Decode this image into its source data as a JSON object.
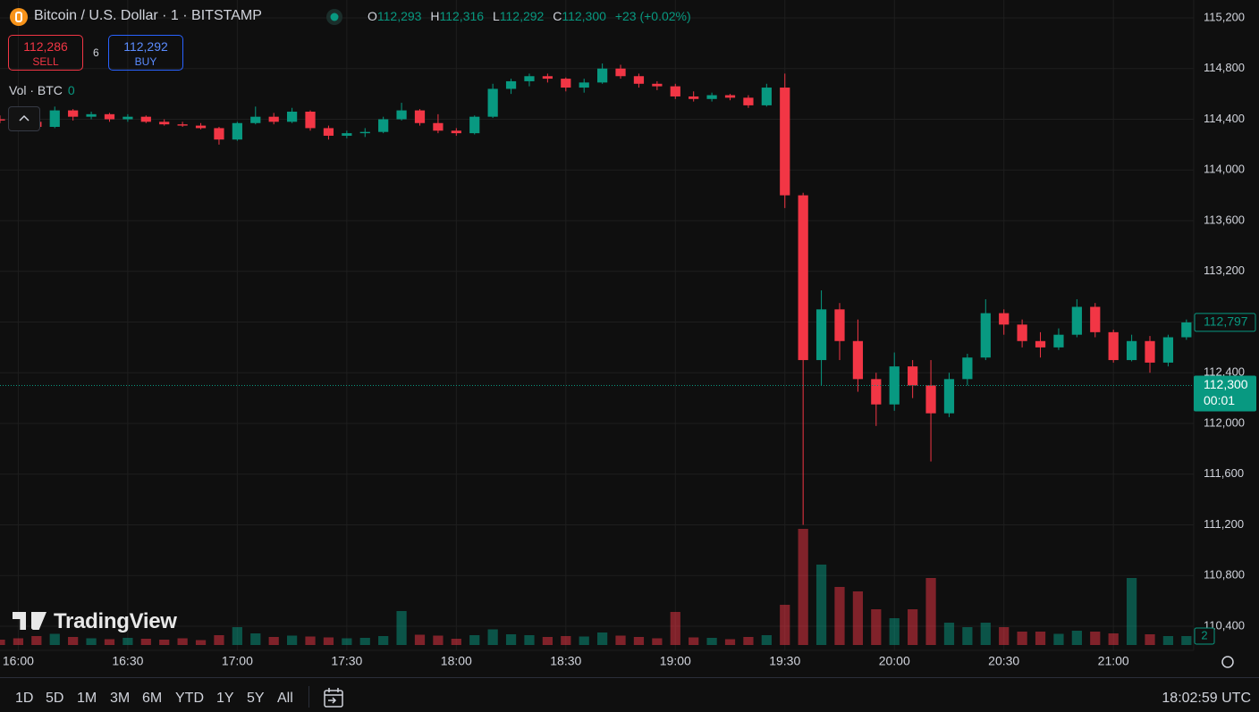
{
  "header": {
    "symbol": "Bitcoin / U.S. Dollar · 1 · BITSTAMP",
    "ohlc": [
      {
        "label": "O",
        "value": "112,293"
      },
      {
        "label": "H",
        "value": "112,316"
      },
      {
        "label": "L",
        "value": "112,292"
      },
      {
        "label": "C",
        "value": "112,300"
      }
    ],
    "change": "+23 (+0.02%)",
    "sell": {
      "price": "112,286",
      "label": "SELL"
    },
    "spread": "6",
    "buy": {
      "price": "112,292",
      "label": "BUY"
    },
    "volume": {
      "label": "Vol · BTC",
      "value": "0"
    },
    "logo": "TradingView"
  },
  "toolbar": {
    "ranges": [
      "1D",
      "5D",
      "1M",
      "3M",
      "6M",
      "YTD",
      "1Y",
      "5Y",
      "All"
    ],
    "clock": "18:02:59 UTC"
  },
  "chart_data": {
    "type": "candlestick",
    "up_color": "#089981",
    "down_color": "#f23645",
    "grid": true,
    "xlim": [
      "15:55",
      "21:22"
    ],
    "xticks": [
      "16:00",
      "16:30",
      "17:00",
      "17:30",
      "18:00",
      "18:30",
      "19:00",
      "19:30",
      "20:00",
      "20:30",
      "21:00"
    ],
    "ylim": [
      110400,
      115200
    ],
    "yticks": [
      {
        "value": 110400,
        "label": "110,400"
      },
      {
        "value": 110800,
        "label": "110,800"
      },
      {
        "value": 111200,
        "label": "111,200"
      },
      {
        "value": 111600,
        "label": "111,600"
      },
      {
        "value": 112000,
        "label": "112,000"
      },
      {
        "value": 112400,
        "label": "112,400"
      },
      {
        "value": 112800,
        "label": "112,800"
      },
      {
        "value": 113200,
        "label": "113,200"
      },
      {
        "value": 113600,
        "label": "113,600"
      },
      {
        "value": 114000,
        "label": "114,000"
      },
      {
        "value": 114400,
        "label": "114,400"
      },
      {
        "value": 114800,
        "label": "114,800"
      },
      {
        "value": 115200,
        "label": "115,200"
      }
    ],
    "vlim": [
      0,
      40
    ],
    "x": [
      "15:55",
      "16:00",
      "16:05",
      "16:10",
      "16:15",
      "16:20",
      "16:25",
      "16:30",
      "16:35",
      "16:40",
      "16:45",
      "16:50",
      "16:55",
      "17:00",
      "17:05",
      "17:10",
      "17:15",
      "17:20",
      "17:25",
      "17:30",
      "17:35",
      "17:40",
      "17:45",
      "17:50",
      "17:55",
      "18:00",
      "18:05",
      "18:10",
      "18:15",
      "18:20",
      "18:25",
      "18:30",
      "18:35",
      "18:40",
      "18:45",
      "18:50",
      "18:55",
      "19:00",
      "19:05",
      "19:10",
      "19:15",
      "19:20",
      "19:25",
      "19:30",
      "19:35",
      "19:40",
      "19:45",
      "19:50",
      "19:55",
      "20:00",
      "20:05",
      "20:10",
      "20:15",
      "20:20",
      "20:25",
      "20:30",
      "20:35",
      "20:40",
      "20:45",
      "20:50",
      "20:55",
      "21:00",
      "21:05",
      "21:10",
      "21:15",
      "21:20"
    ],
    "open": [
      114400,
      114390,
      114380,
      114340,
      114470,
      114420,
      114440,
      114400,
      114420,
      114380,
      114360,
      114350,
      114330,
      114240,
      114370,
      114420,
      114380,
      114460,
      114330,
      114270,
      114290,
      114300,
      114400,
      114470,
      114370,
      114310,
      114290,
      114420,
      114640,
      114700,
      114740,
      114720,
      114650,
      114690,
      114800,
      114740,
      114680,
      114660,
      114580,
      114560,
      114590,
      114570,
      114510,
      114650,
      113800,
      112500,
      112900,
      112650,
      112350,
      112150,
      112450,
      112300,
      112080,
      112350,
      112520,
      112870,
      112780,
      112650,
      112600,
      112700,
      112920,
      112720,
      112500,
      112650,
      112480,
      112680
    ],
    "high": [
      114430,
      114440,
      114400,
      114500,
      114480,
      114460,
      114450,
      114440,
      114430,
      114400,
      114380,
      114370,
      114340,
      114380,
      114500,
      114450,
      114490,
      114470,
      114350,
      114310,
      114330,
      114420,
      114530,
      114480,
      114440,
      114330,
      114430,
      114680,
      114720,
      114760,
      114760,
      114730,
      114720,
      114840,
      114830,
      114760,
      114700,
      114680,
      114620,
      114610,
      114600,
      114590,
      114680,
      114760,
      113820,
      113050,
      112950,
      112820,
      112400,
      112560,
      112500,
      112500,
      112400,
      112550,
      112980,
      112900,
      112820,
      112720,
      112750,
      112980,
      112950,
      112740,
      112700,
      112690,
      112700,
      112820
    ],
    "low": [
      114370,
      114360,
      114320,
      114330,
      114390,
      114400,
      114380,
      114380,
      114370,
      114350,
      114340,
      114320,
      114200,
      114230,
      114360,
      114360,
      114370,
      114310,
      114240,
      114250,
      114260,
      114290,
      114390,
      114350,
      114290,
      114270,
      114280,
      114410,
      114600,
      114660,
      114690,
      114620,
      114610,
      114680,
      114720,
      114650,
      114630,
      114560,
      114540,
      114540,
      114550,
      114490,
      114500,
      113700,
      111200,
      112300,
      112500,
      112250,
      111980,
      112100,
      112200,
      111700,
      112050,
      112300,
      112500,
      112700,
      112600,
      112520,
      112580,
      112680,
      112680,
      112480,
      112490,
      112400,
      112450,
      112660
    ],
    "close": [
      114390,
      114380,
      114340,
      114470,
      114420,
      114440,
      114400,
      114420,
      114380,
      114360,
      114350,
      114330,
      114240,
      114370,
      114420,
      114380,
      114460,
      114330,
      114270,
      114290,
      114300,
      114400,
      114470,
      114370,
      114310,
      114290,
      114420,
      114640,
      114700,
      114740,
      114720,
      114650,
      114690,
      114800,
      114740,
      114680,
      114660,
      114580,
      114560,
      114590,
      114570,
      114510,
      114650,
      113800,
      112500,
      112900,
      112650,
      112350,
      112150,
      112450,
      112300,
      112080,
      112350,
      112520,
      112870,
      112780,
      112650,
      112600,
      112700,
      112920,
      112720,
      112500,
      112650,
      112480,
      112680,
      112797
    ],
    "volume": [
      1.2,
      1.5,
      2,
      2.5,
      1.8,
      1.5,
      1.3,
      1.6,
      1.4,
      1.2,
      1.5,
      1.1,
      2.2,
      4,
      2.6,
      1.8,
      2.1,
      1.9,
      1.7,
      1.5,
      1.6,
      2,
      7.6,
      2.3,
      2.1,
      1.4,
      2.2,
      3.5,
      2.4,
      2.2,
      1.8,
      2,
      1.9,
      2.8,
      2.1,
      1.8,
      1.5,
      7.4,
      1.7,
      1.6,
      1.3,
      1.8,
      2.2,
      9,
      26,
      18,
      13,
      12,
      8,
      6,
      8,
      15,
      5,
      4,
      5,
      4,
      3,
      3,
      2.5,
      3.2,
      3,
      2.6,
      15,
      2.4,
      2,
      2
    ],
    "last_price": {
      "value": 112300,
      "label": "112,300",
      "countdown": "00:01"
    },
    "price_marker": {
      "value": 112797,
      "label": "112,797"
    },
    "volume_marker": 2
  }
}
